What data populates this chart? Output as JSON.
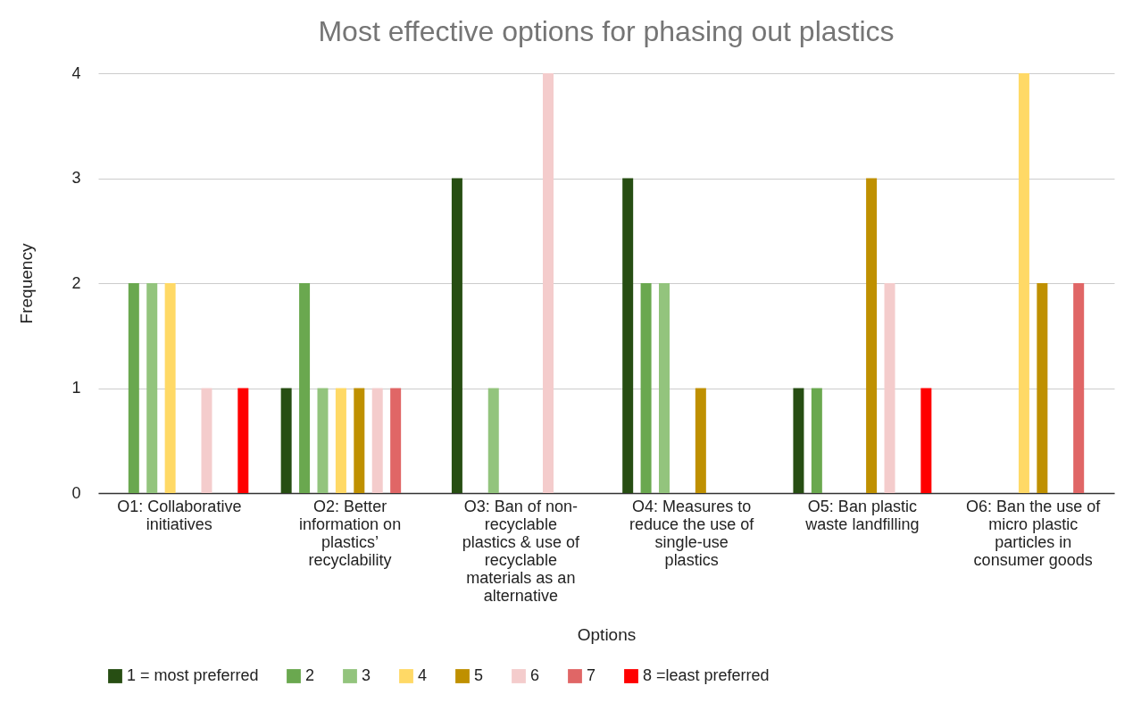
{
  "chart_data": {
    "type": "bar",
    "title": "Most effective options for phasing out plastics",
    "xlabel": "Options",
    "ylabel": "Frequency",
    "categories": [
      "O1: Collaborative initiatives",
      "O2: Better information on plastics’ recyclability",
      "O3: Ban of non-recyclable plastics & use of recyclable materials as an alternative",
      "O4: Measures to reduce the use of single-use plastics",
      "O5: Ban plastic waste landfilling",
      "O6: Ban the use of micro plastic particles in consumer goods"
    ],
    "series": [
      {
        "name": "1 = most preferred",
        "color": "#274e13",
        "values": [
          null,
          1,
          3,
          3,
          1,
          null
        ]
      },
      {
        "name": "2",
        "color": "#6aa84f",
        "values": [
          2,
          2,
          null,
          2,
          1,
          null
        ]
      },
      {
        "name": "3",
        "color": "#93c47d",
        "values": [
          2,
          1,
          1,
          2,
          null,
          null
        ]
      },
      {
        "name": "4",
        "color": "#ffd966",
        "values": [
          2,
          1,
          null,
          null,
          null,
          4
        ]
      },
      {
        "name": "5",
        "color": "#bf9000",
        "values": [
          null,
          1,
          null,
          1,
          3,
          2
        ]
      },
      {
        "name": "6",
        "color": "#f4cccc",
        "values": [
          1,
          1,
          4,
          null,
          2,
          null
        ]
      },
      {
        "name": "7",
        "color": "#e06666",
        "values": [
          null,
          1,
          null,
          null,
          null,
          2
        ]
      },
      {
        "name": "8 =least preferred",
        "color": "#ff0000",
        "values": [
          1,
          null,
          null,
          null,
          1,
          null
        ]
      }
    ],
    "ylim": [
      0,
      4
    ],
    "yticks": [
      0,
      1,
      2,
      3,
      4
    ],
    "grid": "y",
    "legend": "bottom"
  }
}
